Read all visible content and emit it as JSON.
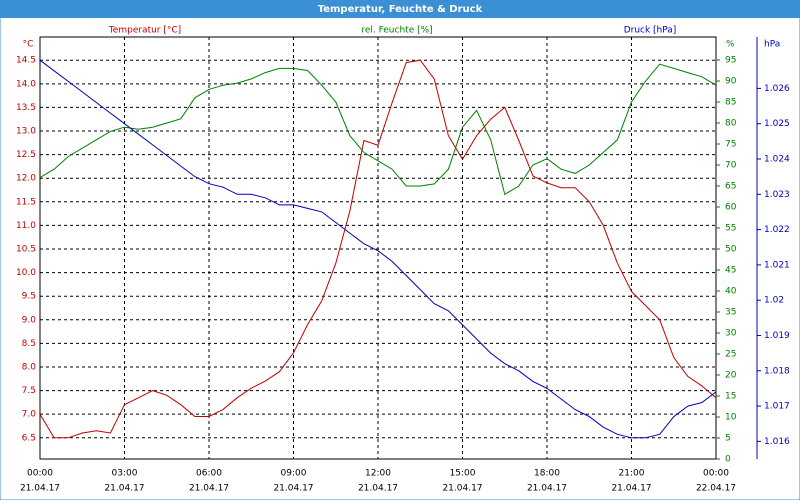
{
  "chart_data": {
    "type": "line",
    "title": "Temperatur, Feuchte & Druck",
    "x": [
      0,
      0.5,
      1,
      1.5,
      2,
      2.5,
      3,
      3.5,
      4,
      4.5,
      5,
      5.5,
      6,
      6.5,
      7,
      7.5,
      8,
      8.5,
      9,
      9.5,
      10,
      10.5,
      11,
      11.5,
      12,
      12.5,
      13,
      13.5,
      14,
      14.5,
      15,
      15.5,
      16,
      16.5,
      17,
      17.5,
      18,
      18.5,
      19,
      19.5,
      20,
      20.5,
      21,
      21.5,
      22,
      22.5,
      23,
      23.5,
      24
    ],
    "xlim": [
      0,
      24
    ],
    "xticks": [
      {
        "value": 0,
        "label": "00:00",
        "date": "21.04.17"
      },
      {
        "value": 3,
        "label": "03:00",
        "date": "21.04.17"
      },
      {
        "value": 6,
        "label": "06:00",
        "date": "21.04.17"
      },
      {
        "value": 9,
        "label": "09:00",
        "date": "21.04.17"
      },
      {
        "value": 12,
        "label": "12:00",
        "date": "21.04.17"
      },
      {
        "value": 15,
        "label": "15:00",
        "date": "21.04.17"
      },
      {
        "value": 18,
        "label": "18:00",
        "date": "21.04.17"
      },
      {
        "value": 21,
        "label": "21:00",
        "date": "21.04.17"
      },
      {
        "value": 24,
        "label": "00:00",
        "date": "22.04.17"
      }
    ],
    "ylabel": "°C",
    "y2label": "%",
    "y3label": "hPa",
    "ylim": [
      6.05,
      14.95
    ],
    "yticks": [
      6.5,
      {
        "value": 7,
        "label": "7.0"
      },
      7.5,
      {
        "value": 8,
        "label": "8.0"
      },
      8.5,
      {
        "value": 9,
        "label": "9.0"
      },
      9.5,
      {
        "value": 10,
        "label": "10.0"
      },
      10.5,
      {
        "value": 11,
        "label": "11.0"
      },
      11.5,
      {
        "value": 12,
        "label": "12.0"
      },
      12.5,
      {
        "value": 13,
        "label": "13.0"
      },
      13.5,
      {
        "value": 14,
        "label": "14.0"
      },
      14.5
    ],
    "y2lim": [
      0,
      100
    ],
    "y2ticks": [
      0,
      5,
      10,
      15,
      20,
      25,
      30,
      35,
      40,
      45,
      50,
      55,
      60,
      65,
      70,
      75,
      80,
      85,
      90,
      95
    ],
    "y3lim": [
      1.0155,
      1.0274
    ],
    "y3ticks": [
      1.016,
      1.017,
      1.018,
      1.019,
      1.02,
      1.021,
      1.022,
      1.023,
      1.024,
      1.025,
      1.026
    ],
    "grid": true,
    "series": [
      {
        "name": "Temperatur [°C]",
        "color": "#c00000",
        "axis": "y",
        "values": [
          7.0,
          6.5,
          6.5,
          6.6,
          6.65,
          6.6,
          7.2,
          7.35,
          7.5,
          7.4,
          7.2,
          6.95,
          6.95,
          7.1,
          7.35,
          7.55,
          7.7,
          7.9,
          8.3,
          8.9,
          9.4,
          10.2,
          11.3,
          12.8,
          12.7,
          13.6,
          14.45,
          14.5,
          14.1,
          12.9,
          12.4,
          12.9,
          13.25,
          13.5,
          12.8,
          12.05,
          11.9,
          11.8,
          11.8,
          11.5,
          11.0,
          10.2,
          9.6,
          9.3,
          9.0,
          8.2,
          7.8,
          7.6,
          7.35
        ]
      },
      {
        "name": "rel. Feuchte [%]",
        "color": "#008000",
        "axis": "y2",
        "values": [
          67,
          69,
          72,
          74,
          76,
          78,
          79,
          78.5,
          79,
          80,
          81,
          86,
          88,
          89,
          89.5,
          90.5,
          92,
          93,
          93,
          92.5,
          89,
          85,
          77,
          73,
          71,
          69,
          65,
          65,
          65.5,
          69,
          79,
          83,
          76,
          63,
          65,
          70,
          71.5,
          69,
          68,
          70,
          73,
          76,
          85,
          90,
          94,
          93,
          92,
          91,
          89
        ]
      },
      {
        "name": "Druck [hPa]",
        "color": "#0000c0",
        "axis": "y3",
        "values": [
          1.0268,
          1.0265,
          1.0262,
          1.0259,
          1.0256,
          1.0253,
          1.025,
          1.0247,
          1.0244,
          1.0241,
          1.0238,
          1.0235,
          1.0233,
          1.0232,
          1.023,
          1.023,
          1.0229,
          1.0227,
          1.0227,
          1.0226,
          1.0225,
          1.0222,
          1.0219,
          1.0216,
          1.0214,
          1.0211,
          1.0207,
          1.0203,
          1.0199,
          1.0197,
          1.0193,
          1.0189,
          1.0185,
          1.0182,
          1.018,
          1.0177,
          1.0175,
          1.0172,
          1.0169,
          1.0167,
          1.0164,
          1.0162,
          1.0161,
          1.0161,
          1.0162,
          1.0167,
          1.017,
          1.0171,
          1.0174
        ]
      }
    ]
  }
}
